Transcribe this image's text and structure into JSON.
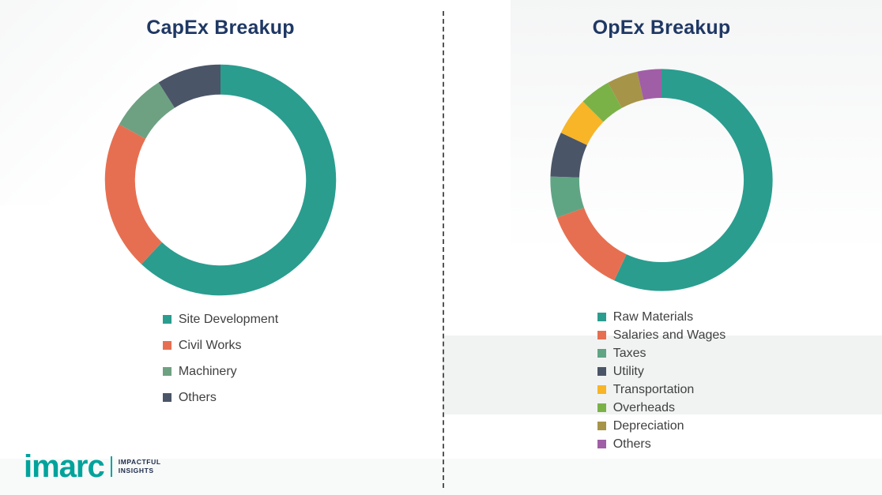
{
  "page": {
    "background_color": "#ffffff"
  },
  "colors": {
    "title": "#1f3864",
    "legend_text": "#404040",
    "brand_teal": "#00a39b",
    "tagline_text": "#1b2a4a",
    "divider": "#555555"
  },
  "logo": {
    "brand": "imarc",
    "tagline_line1": "IMPACTFUL",
    "tagline_line2": "INSIGHTS"
  },
  "chart_data": [
    {
      "type": "pie",
      "subtype": "donut",
      "title": "CapEx Breakup",
      "labels": [
        "Site Development",
        "Civil Works",
        "Machinery",
        "Others"
      ],
      "values": [
        62,
        21,
        8,
        9
      ],
      "colors": [
        "#2a9d8f",
        "#e76f51",
        "#6da182",
        "#4b5568"
      ],
      "start_angle_deg": 0,
      "direction": "clockwise",
      "donut_hole_ratio": 0.74,
      "legend_position": "bottom",
      "data_labels": "none"
    },
    {
      "type": "pie",
      "subtype": "donut",
      "title": "OpEx Breakup",
      "labels": [
        "Raw Materials",
        "Salaries and Wages",
        "Taxes",
        "Utility",
        "Transportation",
        "Overheads",
        "Depreciation",
        "Others"
      ],
      "values": [
        57,
        12.5,
        6,
        6.5,
        5.5,
        4.5,
        4.5,
        3.5
      ],
      "colors": [
        "#2a9d8f",
        "#e76f51",
        "#5fa584",
        "#4b5568",
        "#f7b527",
        "#7ab248",
        "#a69449",
        "#a05ea6"
      ],
      "start_angle_deg": 0,
      "direction": "clockwise",
      "donut_hole_ratio": 0.74,
      "legend_position": "bottom",
      "data_labels": "none"
    }
  ]
}
